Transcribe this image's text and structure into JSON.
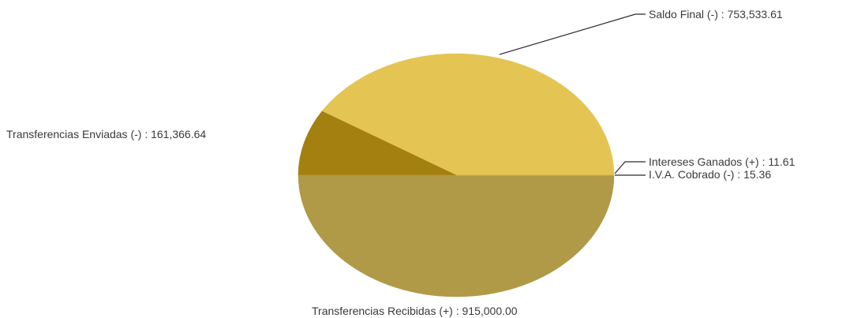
{
  "chart_data": {
    "type": "pie",
    "title": "",
    "slices": [
      {
        "label": "Saldo Final (-) : 753,533.61",
        "value": 753533.61,
        "color": "#e4c553"
      },
      {
        "label": "Transferencias Enviadas (-) : 161,366.64",
        "value": 161366.64,
        "color": "#a38010"
      },
      {
        "label": "Transferencias Recibidas (+) : 915,000.00",
        "value": 915000.0,
        "color": "#b09a47"
      },
      {
        "label": "I.V.A. Cobrado (-) : 15.36",
        "value": 15.36,
        "color": "#c9ad3c"
      },
      {
        "label": "Intereses Ganados (+) : 11.61",
        "value": 11.61,
        "color": "#d7bb47"
      }
    ]
  }
}
